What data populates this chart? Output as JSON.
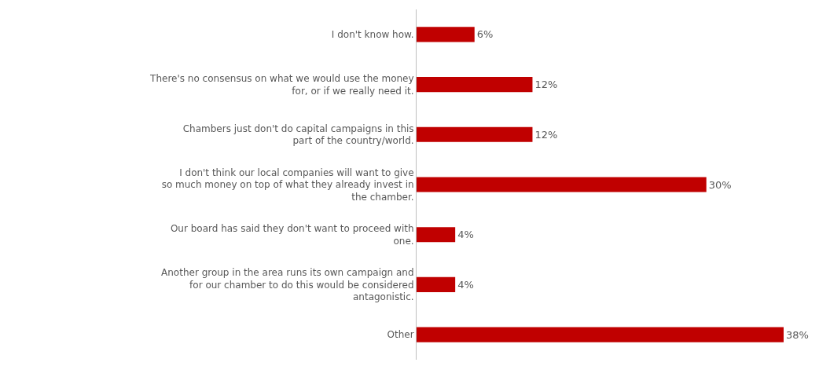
{
  "chart_data": {
    "type": "bar",
    "orientation": "horizontal",
    "categories": [
      "I don't know how.",
      "There's no consensus on what we would use the money for, or if we really need it.",
      "Chambers just don't do capital campaigns in this part of the country/world.",
      "I don't think our local companies will want to give so much money on top of what they already invest in the chamber.",
      "Our board has said they don't want to proceed with one.",
      "Another group in the area runs its own campaign and for our chamber to do this would be considered antagonistic.",
      "Other"
    ],
    "values": [
      6,
      12,
      12,
      30,
      4,
      4,
      38
    ],
    "value_labels": [
      "6%",
      "12%",
      "12%",
      "30%",
      "4%",
      "4%",
      "38%"
    ],
    "color": "#c00000"
  }
}
